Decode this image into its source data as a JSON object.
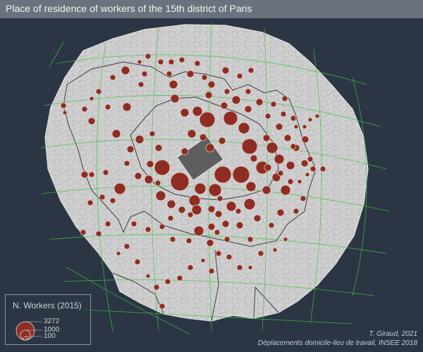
{
  "title": "Place of residence of workers of the 15th district of Paris",
  "legend": {
    "title": "N. Workers (2015)",
    "values": [
      "3272",
      "1000",
      "100"
    ]
  },
  "credits": {
    "author": "T. Giraud, 2021",
    "source": "Déplacements domicile-lieu de travail, INSEE 2018"
  },
  "colors": {
    "background": "#2b3544",
    "land": "#cfcfcf",
    "symbols": "#8f2d22",
    "graticule": "#3fc43f",
    "origin": "#5e5e5e"
  }
}
